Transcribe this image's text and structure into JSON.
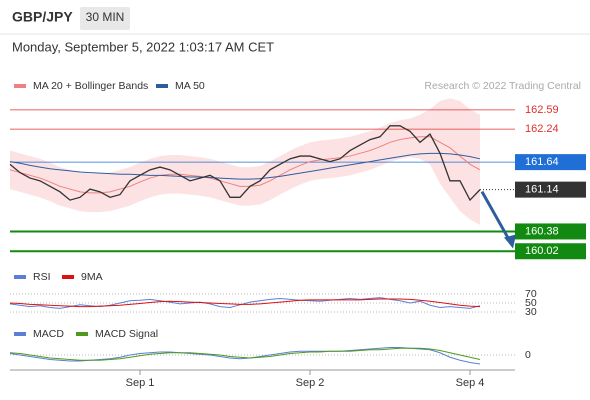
{
  "header": {
    "symbol": "GBP/JPY",
    "interval": "30 MIN",
    "datetime": "Monday, September 5, 2022 1:03:17 AM CET"
  },
  "chart_data": [
    {
      "type": "line",
      "credit": "Research © 2022 Trading Central",
      "categories": [
        null,
        null,
        null,
        null,
        null,
        null,
        null,
        null,
        null,
        null,
        null,
        null,
        null,
        "Sep 1",
        null,
        null,
        null,
        null,
        null,
        null,
        null,
        null,
        null,
        null,
        null,
        null,
        null,
        null,
        null,
        null,
        "Sep 2",
        null,
        null,
        null,
        null,
        null,
        null,
        null,
        null,
        null,
        null,
        null,
        null,
        null,
        null,
        null,
        "Sep 4",
        null
      ],
      "values": [
        161.6,
        161.45,
        161.35,
        161.3,
        161.2,
        161.1,
        160.95,
        161.0,
        161.15,
        161.1,
        161.0,
        161.05,
        161.3,
        161.4,
        161.5,
        161.55,
        161.5,
        161.4,
        161.3,
        161.35,
        161.4,
        161.3,
        161.0,
        161.0,
        161.2,
        161.3,
        161.5,
        161.6,
        161.7,
        161.75,
        161.75,
        161.7,
        161.65,
        161.7,
        161.85,
        161.95,
        162.05,
        162.1,
        162.3,
        162.3,
        162.2,
        162.0,
        162.15,
        161.8,
        161.3,
        161.3,
        160.95,
        161.14
      ],
      "color": "#333333",
      "series": [
        {
          "name": "MA 20 + Bollinger Bands",
          "color": "#f08080",
          "values": [
            161.5,
            161.45,
            161.4,
            161.35,
            161.28,
            161.2,
            161.15,
            161.1,
            161.08,
            161.08,
            161.1,
            161.15,
            161.2,
            161.28,
            161.35,
            161.4,
            161.42,
            161.42,
            161.4,
            161.38,
            161.35,
            161.3,
            161.25,
            161.2,
            161.2,
            161.22,
            161.3,
            161.4,
            161.5,
            161.58,
            161.65,
            161.68,
            161.7,
            161.72,
            161.75,
            161.8,
            161.85,
            161.92,
            162.0,
            162.05,
            162.08,
            162.1,
            162.1,
            162.0,
            161.9,
            161.75,
            161.6,
            161.5
          ]
        },
        {
          "name": "MA 50",
          "color": "#2e5d9f",
          "values": [
            161.65,
            161.62,
            161.58,
            161.55,
            161.52,
            161.5,
            161.48,
            161.46,
            161.45,
            161.44,
            161.43,
            161.42,
            161.42,
            161.41,
            161.4,
            161.4,
            161.39,
            161.38,
            161.37,
            161.37,
            161.36,
            161.35,
            161.34,
            161.33,
            161.33,
            161.34,
            161.36,
            161.38,
            161.41,
            161.44,
            161.47,
            161.5,
            161.53,
            161.56,
            161.59,
            161.62,
            161.65,
            161.68,
            161.71,
            161.74,
            161.77,
            161.79,
            161.8,
            161.8,
            161.79,
            161.77,
            161.74,
            161.7
          ]
        }
      ],
      "bands": {
        "color": "#fbd5d5",
        "upper": [
          161.85,
          161.8,
          161.75,
          161.7,
          161.63,
          161.55,
          161.5,
          161.45,
          161.43,
          161.43,
          161.45,
          161.5,
          161.55,
          161.63,
          161.7,
          161.75,
          161.77,
          161.77,
          161.75,
          161.73,
          161.7,
          161.65,
          161.6,
          161.55,
          161.55,
          161.57,
          161.65,
          161.75,
          161.85,
          161.93,
          162.0,
          162.03,
          162.05,
          162.07,
          162.1,
          162.15,
          162.2,
          162.27,
          162.35,
          162.4,
          162.43,
          162.5,
          162.6,
          162.75,
          162.8,
          162.75,
          162.6,
          162.5
        ],
        "lower": [
          161.15,
          161.1,
          161.05,
          161.0,
          160.93,
          160.85,
          160.8,
          160.75,
          160.73,
          160.73,
          160.75,
          160.8,
          160.85,
          160.93,
          161.0,
          161.05,
          161.07,
          161.07,
          161.05,
          161.03,
          161.0,
          160.95,
          160.9,
          160.85,
          160.85,
          160.87,
          160.95,
          161.05,
          161.15,
          161.23,
          161.3,
          161.33,
          161.35,
          161.37,
          161.4,
          161.45,
          161.5,
          161.57,
          161.65,
          161.7,
          161.73,
          161.7,
          161.6,
          161.25,
          161.0,
          160.75,
          160.6,
          160.5
        ]
      },
      "levels": [
        {
          "value": 162.59,
          "color": "#e03030",
          "style": "text"
        },
        {
          "value": 162.24,
          "color": "#e03030",
          "style": "text"
        },
        {
          "value": 161.64,
          "color": "#1f6fd6",
          "style": "box"
        },
        {
          "value": 161.14,
          "color": "#333333",
          "style": "dotted"
        },
        {
          "value": 160.38,
          "color": "#128a12",
          "style": "thick"
        },
        {
          "value": 160.02,
          "color": "#128a12",
          "style": "thick"
        }
      ],
      "ylim": [
        159.77,
        162.86
      ]
    },
    {
      "type": "line",
      "series": [
        {
          "name": "RSI",
          "color": "#5b7fd6",
          "values": [
            48,
            45,
            42,
            44,
            40,
            38,
            42,
            46,
            44,
            42,
            45,
            50,
            55,
            56,
            58,
            55,
            52,
            48,
            50,
            52,
            48,
            42,
            40,
            46,
            52,
            55,
            58,
            60,
            58,
            56,
            55,
            54,
            56,
            58,
            60,
            58,
            60,
            62,
            58,
            55,
            50,
            54,
            45,
            40,
            42,
            40,
            38,
            44
          ]
        },
        {
          "name": "9MA",
          "color": "#dd1111",
          "values": [
            50,
            49,
            47,
            46,
            45,
            44,
            43,
            42,
            42,
            43,
            44,
            45,
            47,
            49,
            51,
            53,
            54,
            53,
            52,
            51,
            50,
            49,
            48,
            47,
            47,
            48,
            50,
            52,
            54,
            56,
            57,
            57,
            57,
            57,
            57,
            57,
            58,
            59,
            59,
            59,
            58,
            56,
            54,
            51,
            48,
            45,
            43,
            42
          ]
        }
      ],
      "ylim": [
        16.7,
        83.3
      ],
      "yticks": [
        70,
        50,
        30
      ],
      "grid": true
    },
    {
      "type": "line",
      "series": [
        {
          "name": "MACD",
          "color": "#5b7fd6",
          "values": [
            0.02,
            0.0,
            -0.02,
            -0.04,
            -0.06,
            -0.07,
            -0.08,
            -0.08,
            -0.07,
            -0.06,
            -0.05,
            -0.03,
            0.0,
            0.02,
            0.03,
            0.04,
            0.04,
            0.03,
            0.02,
            0.01,
            0.0,
            -0.02,
            -0.04,
            -0.05,
            -0.04,
            -0.02,
            0.0,
            0.02,
            0.04,
            0.05,
            0.05,
            0.05,
            0.05,
            0.05,
            0.06,
            0.07,
            0.08,
            0.09,
            0.1,
            0.1,
            0.09,
            0.08,
            0.07,
            0.03,
            -0.03,
            -0.07,
            -0.1,
            -0.12
          ]
        },
        {
          "name": "MACD Signal",
          "color": "#4f9a1e",
          "values": [
            0.03,
            0.02,
            0.0,
            -0.02,
            -0.04,
            -0.05,
            -0.06,
            -0.07,
            -0.07,
            -0.07,
            -0.06,
            -0.05,
            -0.03,
            -0.01,
            0.01,
            0.02,
            0.03,
            0.03,
            0.03,
            0.02,
            0.01,
            0.0,
            -0.02,
            -0.03,
            -0.04,
            -0.03,
            -0.02,
            0.0,
            0.02,
            0.03,
            0.04,
            0.04,
            0.05,
            0.05,
            0.05,
            0.06,
            0.07,
            0.07,
            0.08,
            0.09,
            0.09,
            0.09,
            0.08,
            0.06,
            0.03,
            0.0,
            -0.03,
            -0.06
          ]
        }
      ],
      "ylim": [
        -0.2,
        0.2
      ],
      "yticks": [
        0
      ],
      "grid": true
    }
  ]
}
